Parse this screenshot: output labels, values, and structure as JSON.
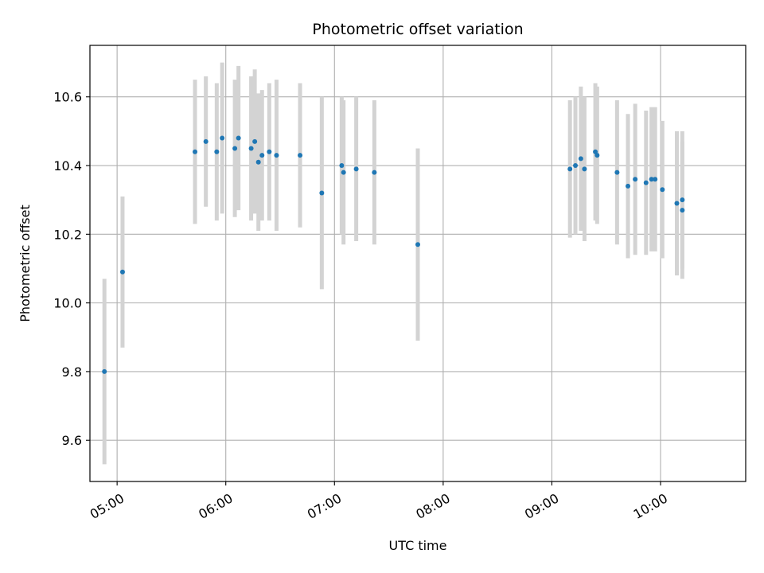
{
  "chart_data": {
    "type": "scatter",
    "title": "Photometric offset variation",
    "xlabel": "UTC time",
    "ylabel": "Photometric offset",
    "x_unit": "UTC time (HH:MM)",
    "xlim": [
      "04:45",
      "10:47"
    ],
    "ylim": [
      9.48,
      10.75
    ],
    "grid": true,
    "x_ticks": [
      "05:00",
      "06:00",
      "07:00",
      "08:00",
      "09:00",
      "10:00"
    ],
    "y_ticks": [
      9.6,
      9.8,
      10.0,
      10.2,
      10.4,
      10.6
    ],
    "y_tick_labels": [
      "9.6",
      "9.8",
      "10.0",
      "10.2",
      "10.4",
      "10.6"
    ],
    "marker_color": "#1f77b4",
    "errorbar_color": "#d3d3d3",
    "points": [
      {
        "x": "04:53",
        "y": 9.8,
        "err": 0.27
      },
      {
        "x": "05:03",
        "y": 10.09,
        "err": 0.22
      },
      {
        "x": "05:43",
        "y": 10.44,
        "err": 0.21
      },
      {
        "x": "05:49",
        "y": 10.47,
        "err": 0.19
      },
      {
        "x": "05:55",
        "y": 10.44,
        "err": 0.2
      },
      {
        "x": "05:58",
        "y": 10.48,
        "err": 0.22
      },
      {
        "x": "06:05",
        "y": 10.45,
        "err": 0.2
      },
      {
        "x": "06:07",
        "y": 10.48,
        "err": 0.21
      },
      {
        "x": "06:14",
        "y": 10.45,
        "err": 0.21
      },
      {
        "x": "06:16",
        "y": 10.47,
        "err": 0.21
      },
      {
        "x": "06:18",
        "y": 10.41,
        "err": 0.2
      },
      {
        "x": "06:20",
        "y": 10.43,
        "err": 0.19
      },
      {
        "x": "06:24",
        "y": 10.44,
        "err": 0.2
      },
      {
        "x": "06:28",
        "y": 10.43,
        "err": 0.22
      },
      {
        "x": "06:41",
        "y": 10.43,
        "err": 0.21
      },
      {
        "x": "06:53",
        "y": 10.32,
        "err": 0.28
      },
      {
        "x": "07:04",
        "y": 10.4,
        "err": 0.2
      },
      {
        "x": "07:05",
        "y": 10.38,
        "err": 0.21
      },
      {
        "x": "07:12",
        "y": 10.39,
        "err": 0.21
      },
      {
        "x": "07:22",
        "y": 10.38,
        "err": 0.21
      },
      {
        "x": "07:46",
        "y": 10.17,
        "err": 0.28
      },
      {
        "x": "09:10",
        "y": 10.39,
        "err": 0.2
      },
      {
        "x": "09:13",
        "y": 10.4,
        "err": 0.2
      },
      {
        "x": "09:16",
        "y": 10.42,
        "err": 0.21
      },
      {
        "x": "09:18",
        "y": 10.39,
        "err": 0.21
      },
      {
        "x": "09:24",
        "y": 10.44,
        "err": 0.2
      },
      {
        "x": "09:25",
        "y": 10.43,
        "err": 0.2
      },
      {
        "x": "09:36",
        "y": 10.38,
        "err": 0.21
      },
      {
        "x": "09:42",
        "y": 10.34,
        "err": 0.21
      },
      {
        "x": "09:46",
        "y": 10.36,
        "err": 0.22
      },
      {
        "x": "09:52",
        "y": 10.35,
        "err": 0.21
      },
      {
        "x": "09:55",
        "y": 10.36,
        "err": 0.21
      },
      {
        "x": "09:57",
        "y": 10.36,
        "err": 0.21
      },
      {
        "x": "10:01",
        "y": 10.33,
        "err": 0.2
      },
      {
        "x": "10:09",
        "y": 10.29,
        "err": 0.21
      },
      {
        "x": "10:12",
        "y": 10.3,
        "err": 0.2
      },
      {
        "x": "10:12",
        "y": 10.27,
        "err": 0.2
      }
    ]
  }
}
